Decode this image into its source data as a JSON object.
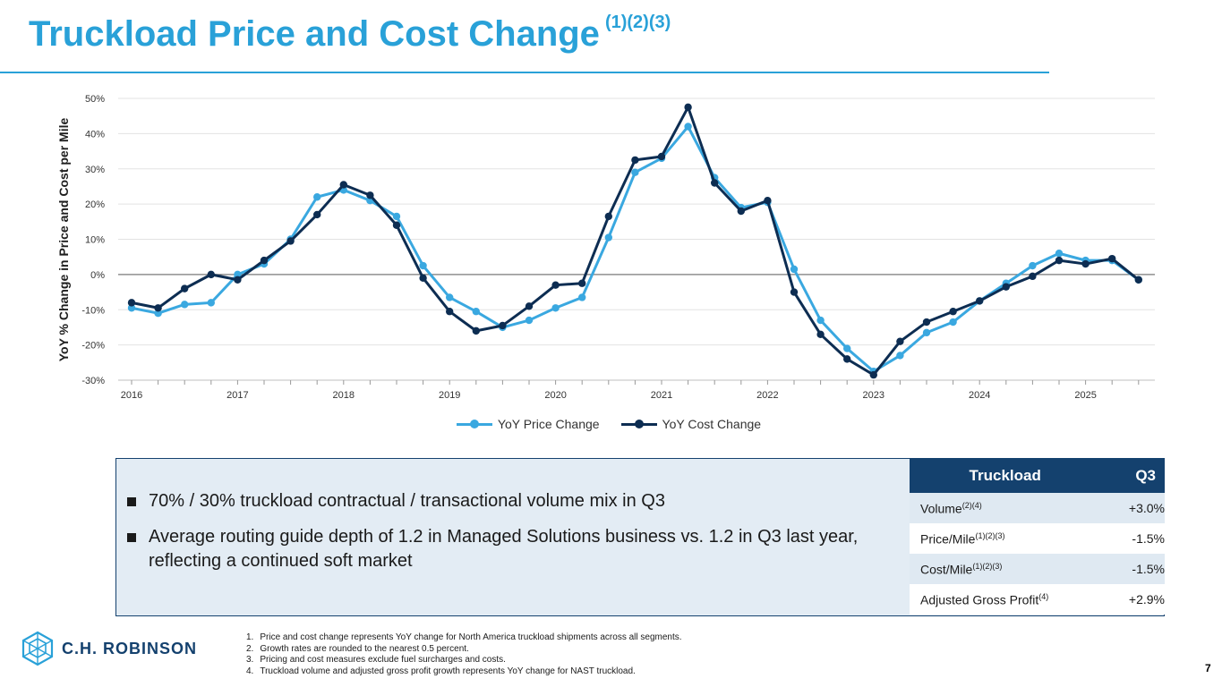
{
  "header": {
    "title": "Truckload Price and Cost Change",
    "title_refs": "(1)(2)(3)"
  },
  "colors": {
    "accent": "#29a1d8",
    "navy": "#14416e",
    "price_series": "#3aa8e0",
    "cost_series": "#0d2d52"
  },
  "chart_data": {
    "type": "line",
    "ylabel": "YoY % Change in Price and Cost per Mile",
    "ylim": [
      -30,
      50
    ],
    "yticks": [
      -30,
      -20,
      -10,
      0,
      10,
      20,
      30,
      40,
      50
    ],
    "ytick_labels": [
      "-30%",
      "-20%",
      "-10%",
      "0%",
      "10%",
      "20%",
      "30%",
      "40%",
      "50%"
    ],
    "year_labels": [
      "2016",
      "2017",
      "2018",
      "2019",
      "2020",
      "2021",
      "2022",
      "2023",
      "2024",
      "2025"
    ],
    "points_per_year": 4,
    "series": [
      {
        "name": "YoY Price Change",
        "values": [
          -9.5,
          -11,
          -8.5,
          -8,
          0,
          3,
          10,
          22,
          24,
          21,
          16.5,
          2.5,
          -6.5,
          -10.5,
          -15,
          -13,
          -9.5,
          -6.5,
          10.5,
          29,
          33,
          42,
          27.5,
          19,
          20.5,
          1.5,
          -13,
          -21,
          -27.5,
          -23,
          -16.5,
          -13.5,
          -7.5,
          -2.5,
          2.5,
          6,
          4,
          4,
          -1.5
        ]
      },
      {
        "name": "YoY Cost Change",
        "values": [
          -8,
          -9.5,
          -4,
          0,
          -1.5,
          4,
          9.5,
          17,
          25.5,
          22.5,
          14,
          -1,
          -10.5,
          -16,
          -14.5,
          -9,
          -3,
          -2.5,
          16.5,
          32.5,
          33.5,
          47.5,
          26,
          18,
          21,
          -5,
          -17,
          -24,
          -28.5,
          -19,
          -13.5,
          -10.5,
          -7.5,
          -3.5,
          -0.5,
          4,
          3,
          4.5,
          -1.5
        ]
      }
    ]
  },
  "summary": {
    "bullets": [
      "70% / 30% truckload contractual / transactional volume mix in Q3",
      "Average routing guide depth of 1.2 in Managed Solutions business vs. 1.2 in Q3 last year, reflecting a continued soft market"
    ]
  },
  "table": {
    "header_metric": "Truckload",
    "header_period": "Q3",
    "rows": [
      {
        "label": "Volume",
        "refs": "(2)(4)",
        "value": "+3.0%"
      },
      {
        "label": "Price/Mile",
        "refs": "(1)(2)(3)",
        "value": "-1.5%"
      },
      {
        "label": "Cost/Mile",
        "refs": "(1)(2)(3)",
        "value": "-1.5%"
      },
      {
        "label": "Adjusted Gross Profit",
        "refs": "(4)",
        "value": "+2.9%"
      }
    ]
  },
  "footnotes": [
    {
      "num": "1.",
      "text": "Price and cost change represents YoY change for North America truckload shipments across all segments."
    },
    {
      "num": "2.",
      "text": "Growth rates are rounded to the nearest 0.5 percent."
    },
    {
      "num": "3.",
      "text": "Pricing and cost measures exclude fuel surcharges and costs."
    },
    {
      "num": "4.",
      "text": "Truckload volume and adjusted gross profit growth represents YoY change for NAST truckload."
    }
  ],
  "brand": {
    "logo_text": "C.H. ROBINSON",
    "logo_icon": "cube-logo-icon"
  },
  "page_number": "7"
}
